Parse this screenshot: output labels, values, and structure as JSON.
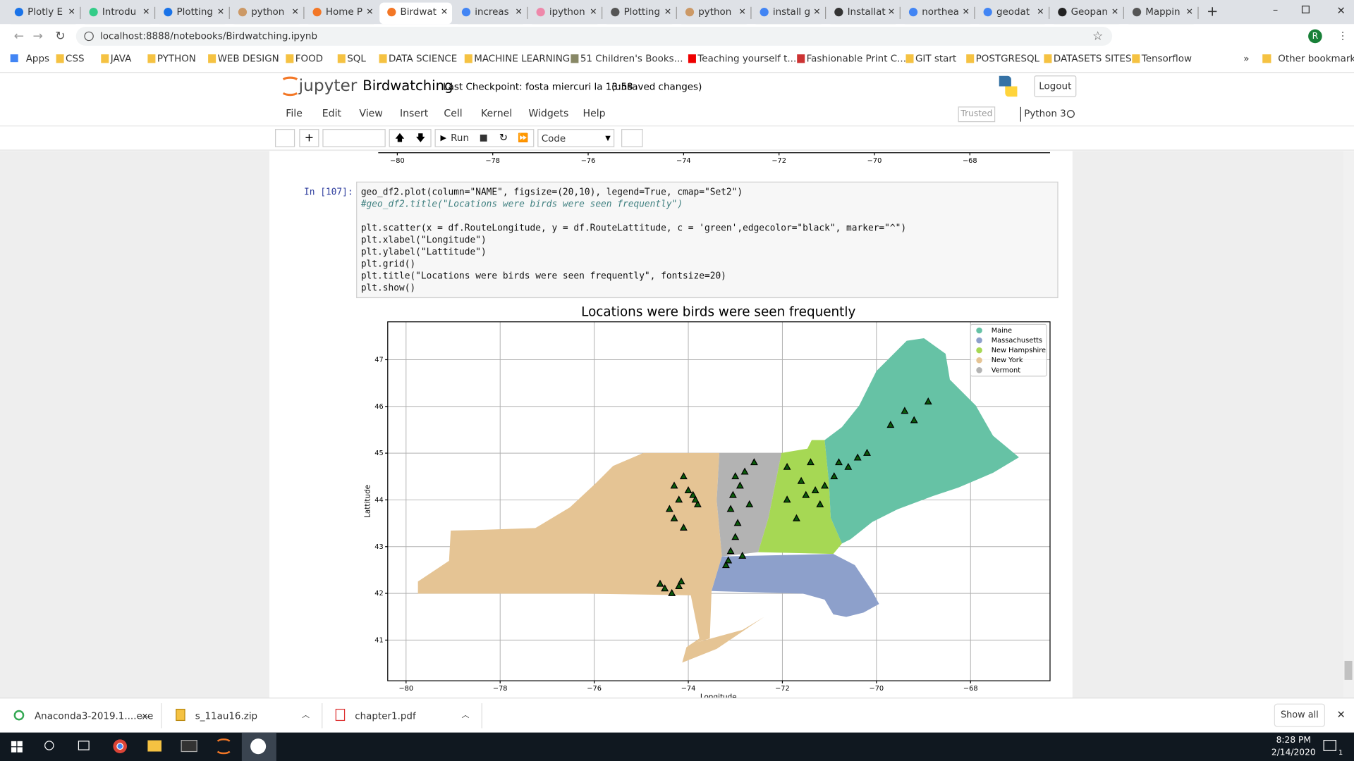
{
  "browser": {
    "tabs": [
      "Plotly E",
      "Introdu",
      "Plotting",
      "python",
      "Home P",
      "Birdwat",
      "increas",
      "ipython",
      "Plotting",
      "python",
      "install g",
      "Installat",
      "northea",
      "geodat",
      "Geopan",
      "Mappin"
    ],
    "address": "localhost:8888/notebooks/Birdwatching.ipynb",
    "bookmarks": [
      "Apps",
      "CSS",
      "JAVA",
      "PYTHON",
      "WEB DESIGN",
      "FOOD",
      "SQL",
      "DATA SCIENCE",
      "MACHINE LEARNING",
      "51 Children's Books...",
      "Teaching yourself t...",
      "Fashionable Print C...",
      "GIT start",
      "POSTGRESQL",
      "DATASETS SITES",
      "Tensorflow"
    ],
    "other_bookmarks": "Other bookmarks",
    "profile": "R"
  },
  "jupyter": {
    "logo": "jupyter",
    "notebook": "Birdwatching",
    "checkpoint": "Last Checkpoint: fosta miercuri la 13:58",
    "status": "(unsaved changes)",
    "logout": "Logout",
    "menu": [
      "File",
      "Edit",
      "View",
      "Insert",
      "Cell",
      "Kernel",
      "Widgets",
      "Help"
    ],
    "trusted": "Trusted",
    "kernel": "Python 3",
    "run": "Run",
    "cell_type": "Code"
  },
  "previous_plot": {
    "xlim": [
      -80.4,
      -66.32
    ],
    "xticks": [
      {
        "value": -80,
        "label": "−80"
      },
      {
        "value": -78,
        "label": "−78"
      },
      {
        "value": -76,
        "label": "−76"
      },
      {
        "value": -74,
        "label": "−74"
      },
      {
        "value": -72,
        "label": "−72"
      },
      {
        "value": -70,
        "label": "−70"
      },
      {
        "value": -68,
        "label": "−68"
      }
    ]
  },
  "cell": {
    "prompt": "In [107]:",
    "code": [
      "geo_df2.plot(column=\"NAME\", figsize=(20,10), legend=True, cmap=\"Set2\")",
      "#geo_df2.title(\"Locations were birds were seen frequently\")",
      "",
      "plt.scatter(x = df.RouteLongitude, y = df.RouteLattitude, c = 'green',edgecolor=\"black\", marker=\"^\")",
      "plt.xlabel(\"Longitude\")",
      "plt.ylabel(\"Lattitude\")",
      "plt.grid()",
      "plt.title(\"Locations were birds were seen frequently\", fontsize=20)",
      "plt.show()"
    ]
  },
  "chart_data": {
    "type": "scatter",
    "title": "Locations were birds were seen frequently",
    "x_label": "Longitude",
    "y_label": "Lattitude",
    "xlim": [
      -80.39,
      -66.31
    ],
    "ylim": [
      40.13,
      47.81
    ],
    "xticks": [
      {
        "value": -80,
        "label": "−80"
      },
      {
        "value": -78,
        "label": "−78"
      },
      {
        "value": -76,
        "label": "−76"
      },
      {
        "value": -74,
        "label": "−74"
      },
      {
        "value": -72,
        "label": "−72"
      },
      {
        "value": -70,
        "label": "−70"
      },
      {
        "value": -68,
        "label": "−68"
      }
    ],
    "yticks": [
      41,
      42,
      43,
      44,
      45,
      46,
      47
    ],
    "grid": true,
    "legend": {
      "position": "upper right",
      "entries": [
        {
          "name": "Maine",
          "color": "#66c2a5"
        },
        {
          "name": "Massachusetts",
          "color": "#8da0cb"
        },
        {
          "name": "New Hampshire",
          "color": "#a6d854"
        },
        {
          "name": "New York",
          "color": "#e5c494"
        },
        {
          "name": "Vermont",
          "color": "#b3b3b3"
        }
      ]
    },
    "marker_color": "#0a5c0a",
    "x": [
      -74.2,
      -74.0,
      -73.9,
      -73.8,
      -74.1,
      -74.3,
      -74.4,
      -74.3,
      -74.1,
      -73.85,
      -74.6,
      -74.5,
      -74.35,
      -74.2,
      -74.15,
      -73.0,
      -72.9,
      -73.05,
      -73.1,
      -72.95,
      -73.0,
      -73.1,
      -73.15,
      -72.85,
      -72.7,
      -72.6,
      -72.8,
      -73.2,
      -71.9,
      -71.6,
      -71.5,
      -71.3,
      -71.2,
      -71.1,
      -71.7,
      -71.4,
      -71.9,
      -70.9,
      -70.6,
      -70.4,
      -70.2,
      -70.8,
      -69.7,
      -69.2,
      -68.9,
      -69.4
    ],
    "y": [
      44.0,
      44.2,
      44.1,
      43.9,
      44.5,
      44.3,
      43.8,
      43.6,
      43.4,
      44.0,
      42.2,
      42.1,
      42.0,
      42.15,
      42.25,
      44.5,
      44.3,
      44.1,
      43.8,
      43.5,
      43.2,
      42.9,
      42.7,
      42.8,
      43.9,
      44.8,
      44.6,
      42.6,
      44.7,
      44.4,
      44.1,
      44.2,
      43.9,
      44.3,
      43.6,
      44.8,
      44.0,
      44.5,
      44.7,
      44.9,
      45.0,
      44.8,
      45.6,
      45.7,
      46.1,
      45.9
    ]
  },
  "downloads": {
    "items": [
      "Anaconda3-2019.1....exe",
      "s_11au16.zip",
      "chapter1.pdf"
    ],
    "show_all": "Show all"
  },
  "taskbar": {
    "time": "8:28 PM",
    "date": "2/14/2020",
    "notifications": "1"
  }
}
